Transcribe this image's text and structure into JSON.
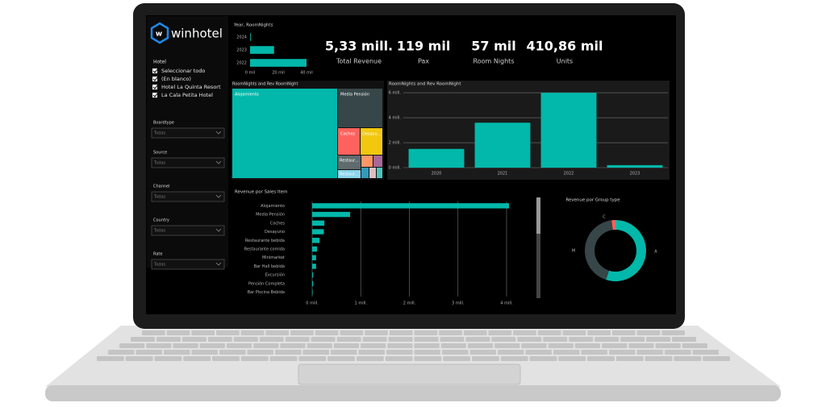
{
  "brand": "winhotel",
  "hotel_filter": {
    "label": "Hotel",
    "options": [
      "Seleccionar todo",
      "(En blanco)",
      "Hotel La Quinta Resort",
      "La Cala Petita Hotel"
    ]
  },
  "dropdowns": [
    {
      "label": "Boardtype",
      "value": "Todas"
    },
    {
      "label": "Source",
      "value": "Todas"
    },
    {
      "label": "Channel",
      "value": "Todas"
    },
    {
      "label": "Country",
      "value": "Todas"
    },
    {
      "label": "Rate",
      "value": "Todas"
    }
  ],
  "kpis": [
    {
      "value": "5,33 mill.",
      "label": "Total Revenue"
    },
    {
      "value": "119 mil",
      "label": "Pax"
    },
    {
      "value": "57 mil",
      "label": "Room Nights"
    },
    {
      "value": "410,86 mil",
      "label": "Units"
    }
  ],
  "treemap": {
    "title": "RoomNights and  Rev RoomNight",
    "labels": [
      "Alojamiento",
      "Media Pensión",
      "Coches",
      "Desayu...",
      "Restaur...",
      "Restaur..."
    ]
  },
  "chart_data": [
    {
      "type": "hbar",
      "title": "Year, RoomNights",
      "categories": [
        "2024",
        "2023",
        "2022"
      ],
      "values": [
        0.5,
        17,
        40
      ],
      "color": "#01b8aa",
      "xlim": [
        0,
        40
      ],
      "xticks": [
        {
          "value": 0,
          "label": "0 mil"
        },
        {
          "value": 20,
          "label": "20 mil"
        },
        {
          "value": 40,
          "label": "40 mil"
        }
      ]
    },
    {
      "type": "bar",
      "title": "RoomNights and  Rev RoomNight",
      "categories": [
        "2020",
        "2021",
        "2022",
        "2023"
      ],
      "values": [
        1.5,
        3.6,
        6.0,
        0.2
      ],
      "color": "#01b8aa",
      "ylim": [
        0,
        6.2
      ],
      "yticks": [
        {
          "value": 0,
          "label": "0 mill."
        },
        {
          "value": 2,
          "label": "2 mill."
        },
        {
          "value": 4,
          "label": "4 mill."
        },
        {
          "value": 6,
          "label": "6 mill."
        }
      ],
      "grid": true
    },
    {
      "type": "hbar",
      "title": "Revenue por Sales Item",
      "categories": [
        "Alojamiento",
        "Media Pensión",
        "Coches",
        "Desayuno",
        "Restaurante bebida",
        "Restaurante comida",
        "Minimarket",
        "Bar Hall bebida",
        "Excursión",
        "Pensión Completa",
        "Bar Piscina Bebida"
      ],
      "values": [
        4.05,
        0.78,
        0.25,
        0.24,
        0.15,
        0.1,
        0.08,
        0.08,
        0.02,
        0.02,
        0.01
      ],
      "color": "#01b8aa",
      "xlim": [
        0,
        4
      ],
      "xticks": [
        {
          "value": 0,
          "label": "0 mill."
        },
        {
          "value": 1,
          "label": "1 mill."
        },
        {
          "value": 2,
          "label": "2 mill."
        },
        {
          "value": 3,
          "label": "3 mill."
        },
        {
          "value": 4,
          "label": "4 mill."
        }
      ],
      "grid": true
    },
    {
      "type": "donut",
      "title": "Revenue por Group type",
      "categories": [
        "A",
        "M",
        "C"
      ],
      "values": [
        55,
        43,
        2
      ],
      "colors": [
        "#01b8aa",
        "#374649",
        "#fd625e"
      ]
    }
  ]
}
